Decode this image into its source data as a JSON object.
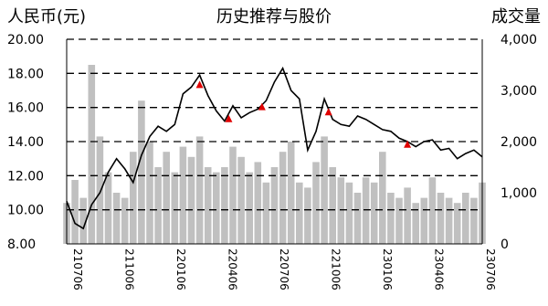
{
  "chart_data": {
    "type": "line+bar",
    "title": "历史推荐与股价",
    "left_axis_label": "人民币(元)",
    "right_axis_label": "成交量",
    "left_ylim": [
      8,
      20
    ],
    "left_ticks": [
      "20.00",
      "18.00",
      "16.00",
      "14.00",
      "12.00",
      "10.00",
      "8.00"
    ],
    "right_ylim": [
      0,
      4000
    ],
    "right_ticks": [
      "4,000",
      "3,000",
      "2,000",
      "1,000",
      "0"
    ],
    "x_ticks": [
      "210706",
      "211006",
      "220106",
      "220406",
      "220706",
      "221006",
      "230106",
      "230406",
      "230706"
    ],
    "grid": "dashed-horizontal",
    "colors": {
      "price_line": "#000000",
      "volume_bar": "#c0c0c0",
      "marker": "#e00000",
      "grid": "#000000"
    },
    "price_series": {
      "name": "",
      "x": [
        0,
        2,
        4,
        6,
        8,
        10,
        12,
        14,
        16,
        18,
        20,
        22,
        24,
        26,
        28,
        30,
        32,
        34,
        36,
        38,
        40,
        42,
        44,
        46,
        48,
        50,
        52,
        54,
        56,
        58,
        60,
        62,
        64,
        66,
        68,
        70,
        72,
        74,
        76,
        78,
        80,
        82,
        84,
        86,
        88,
        90,
        92,
        94,
        96,
        98,
        100
      ],
      "values": [
        10.5,
        9.2,
        8.9,
        10.3,
        11.0,
        12.2,
        13.0,
        12.4,
        11.6,
        13.2,
        14.3,
        14.9,
        14.6,
        15.0,
        16.8,
        17.2,
        17.9,
        16.7,
        15.8,
        15.2,
        16.1,
        15.4,
        15.7,
        15.9,
        16.4,
        17.5,
        18.3,
        17.0,
        16.5,
        13.5,
        14.6,
        16.5,
        15.3,
        15.0,
        14.9,
        15.5,
        15.3,
        15.0,
        14.7,
        14.6,
        14.2,
        14.0,
        13.7,
        14.0,
        14.1,
        13.5,
        13.6,
        13.0,
        13.3,
        13.5,
        13.1
      ]
    },
    "recommend_markers": [
      {
        "x": 32,
        "value": 17.3
      },
      {
        "x": 39,
        "value": 15.3
      },
      {
        "x": 47,
        "value": 16.0
      },
      {
        "x": 63,
        "value": 15.7
      },
      {
        "x": 82,
        "value": 13.8
      }
    ],
    "volume_series": {
      "name": "",
      "x": [
        0,
        2,
        4,
        6,
        8,
        10,
        12,
        14,
        16,
        18,
        20,
        22,
        24,
        26,
        28,
        30,
        32,
        34,
        36,
        38,
        40,
        42,
        44,
        46,
        48,
        50,
        52,
        54,
        56,
        58,
        60,
        62,
        64,
        66,
        68,
        70,
        72,
        74,
        76,
        78,
        80,
        82,
        84,
        86,
        88,
        90,
        92,
        94,
        96,
        98,
        100
      ],
      "values": [
        800,
        1250,
        900,
        3500,
        2100,
        1400,
        1000,
        900,
        1800,
        2800,
        2000,
        1500,
        1800,
        1400,
        1900,
        1700,
        2100,
        1500,
        1400,
        1500,
        1900,
        1700,
        1400,
        1600,
        1200,
        1500,
        1800,
        2000,
        1200,
        1100,
        1600,
        2100,
        1500,
        1300,
        1200,
        1000,
        1300,
        1200,
        1800,
        1000,
        900,
        1100,
        800,
        900,
        1300,
        1000,
        900,
        800,
        1000,
        900,
        1200
      ]
    }
  }
}
